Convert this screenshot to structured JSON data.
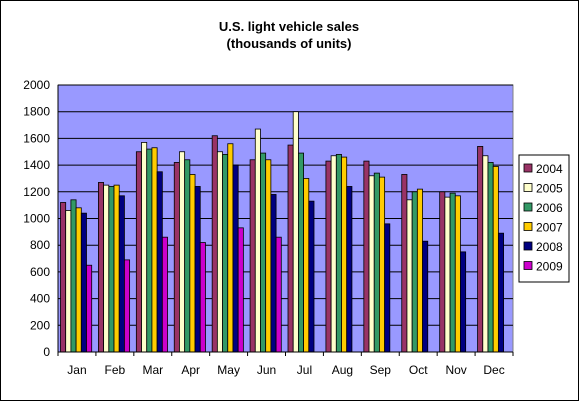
{
  "chart_data": {
    "type": "bar",
    "title": "U.S. light vehicle sales",
    "subtitle": "(thousands of units)",
    "xlabel": "",
    "ylabel": "",
    "ylim": [
      0,
      2000
    ],
    "yticks": [
      0,
      200,
      400,
      600,
      800,
      1000,
      1200,
      1400,
      1600,
      1800,
      2000
    ],
    "grid": "horizontal",
    "legend_position": "right",
    "plot_background": "#9999ff",
    "categories": [
      "Jan",
      "Feb",
      "Mar",
      "Apr",
      "May",
      "Jun",
      "Jul",
      "Aug",
      "Sep",
      "Oct",
      "Nov",
      "Dec"
    ],
    "series": [
      {
        "name": "2004",
        "color": "#993366",
        "values": [
          1120,
          1270,
          1500,
          1420,
          1620,
          1440,
          1550,
          1430,
          1430,
          1330,
          1200,
          1540
        ]
      },
      {
        "name": "2005",
        "color": "#ffffcc",
        "values": [
          1060,
          1250,
          1570,
          1500,
          1500,
          1670,
          1800,
          1470,
          1320,
          1140,
          1160,
          1470
        ]
      },
      {
        "name": "2006",
        "color": "#339966",
        "values": [
          1140,
          1240,
          1520,
          1440,
          1480,
          1490,
          1490,
          1480,
          1340,
          1200,
          1190,
          1420
        ]
      },
      {
        "name": "2007",
        "color": "#ffcc00",
        "values": [
          1080,
          1250,
          1530,
          1330,
          1560,
          1440,
          1300,
          1460,
          1310,
          1220,
          1170,
          1390
        ]
      },
      {
        "name": "2008",
        "color": "#000080",
        "values": [
          1040,
          1170,
          1350,
          1240,
          1400,
          1180,
          1130,
          1240,
          960,
          830,
          750,
          890
        ]
      },
      {
        "name": "2009",
        "color": "#cc00cc",
        "values": [
          650,
          690,
          860,
          820,
          930,
          860,
          null,
          null,
          null,
          null,
          null,
          null
        ]
      }
    ]
  }
}
